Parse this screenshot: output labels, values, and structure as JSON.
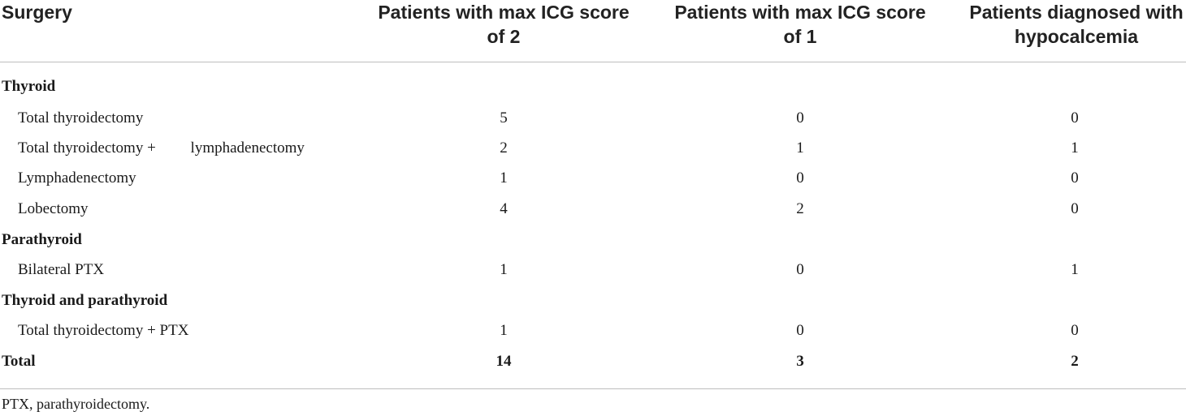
{
  "header": {
    "col0": "Surgery",
    "col1_line1": "Patients with max ICG score",
    "col1_line2": "of 2",
    "col2_line1": "Patients with max ICG score",
    "col2_line2": "of 1",
    "col3_line1": "Patients diagnosed with",
    "col3_line2": "hypocalcemia"
  },
  "rows": [
    {
      "label": "Thyroid",
      "v1": "",
      "v2": "",
      "v3": ""
    },
    {
      "label": "Total thyroidectomy",
      "v1": "5",
      "v2": "0",
      "v3": "0"
    },
    {
      "label": "Total thyroidectomy +         lymphadenectomy",
      "v1": "2",
      "v2": "1",
      "v3": "1"
    },
    {
      "label": "Lymphadenectomy",
      "v1": "1",
      "v2": "0",
      "v3": "0"
    },
    {
      "label": "Lobectomy",
      "v1": "4",
      "v2": "2",
      "v3": "0"
    },
    {
      "label": "Parathyroid",
      "v1": "",
      "v2": "",
      "v3": ""
    },
    {
      "label": "Bilateral PTX",
      "v1": "1",
      "v2": "0",
      "v3": "1"
    },
    {
      "label": "Thyroid and parathyroid",
      "v1": "",
      "v2": "",
      "v3": ""
    },
    {
      "label": "Total thyroidectomy + PTX",
      "v1": "1",
      "v2": "0",
      "v3": "0"
    },
    {
      "label": "Total",
      "v1": "14",
      "v2": "3",
      "v3": "2"
    }
  ],
  "footnote": "PTX, parathyroidectomy."
}
